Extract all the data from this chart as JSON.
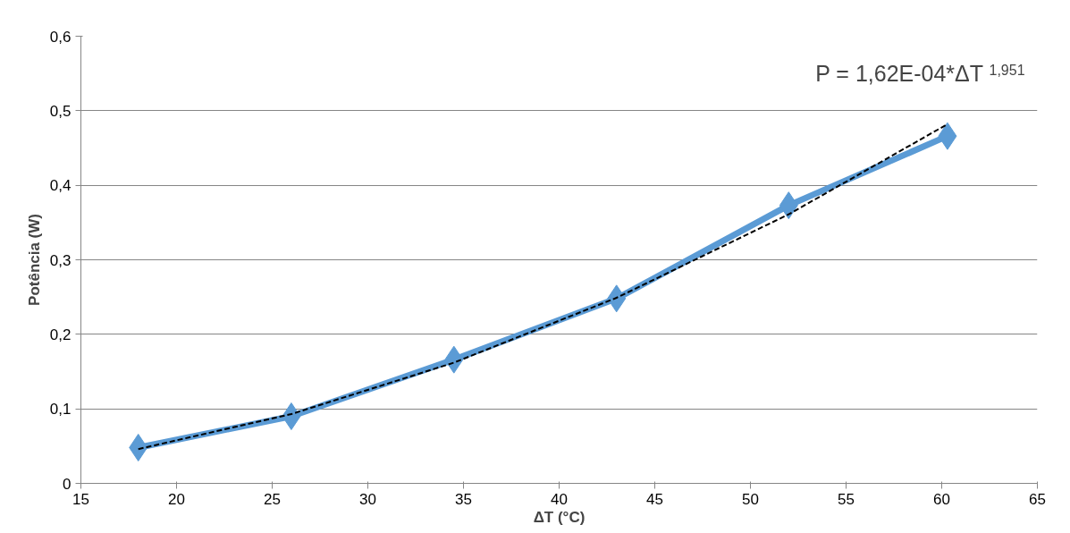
{
  "chart_data": {
    "type": "line",
    "xlabel": "ΔT (°C)",
    "ylabel": "Potência (W)",
    "series": [
      {
        "type": "line",
        "color": "#5b9bd5",
        "marker": "diamond",
        "line_style": "solid",
        "x": [
          18,
          26,
          34.5,
          43,
          52,
          60.3
        ],
        "values": [
          0.048,
          0.09,
          0.166,
          0.248,
          0.373,
          0.466
        ]
      },
      {
        "type": "line",
        "color": "#000000",
        "marker": "none",
        "line_style": "dashed",
        "x": [
          18,
          26,
          34.5,
          43,
          52,
          60.3
        ],
        "values": [
          0.046,
          0.093,
          0.162,
          0.249,
          0.361,
          0.482
        ]
      }
    ],
    "xlim": [
      15,
      65
    ],
    "xticks": [
      15,
      20,
      25,
      30,
      35,
      40,
      45,
      50,
      55,
      60,
      65
    ],
    "ylim": [
      0,
      0.6
    ],
    "yticks": [
      {
        "value": 0,
        "label": "0"
      },
      {
        "value": 0.1,
        "label": "0,1"
      },
      {
        "value": 0.2,
        "label": "0,2"
      },
      {
        "value": 0.3,
        "label": "0,3"
      },
      {
        "value": 0.4,
        "label": "0,4"
      },
      {
        "value": 0.5,
        "label": "0,5"
      },
      {
        "value": 0.6,
        "label": "0,6"
      }
    ],
    "grid": "y",
    "annotations": [
      "P = 1,62E-04*ΔT $^{1,951}$"
    ]
  }
}
